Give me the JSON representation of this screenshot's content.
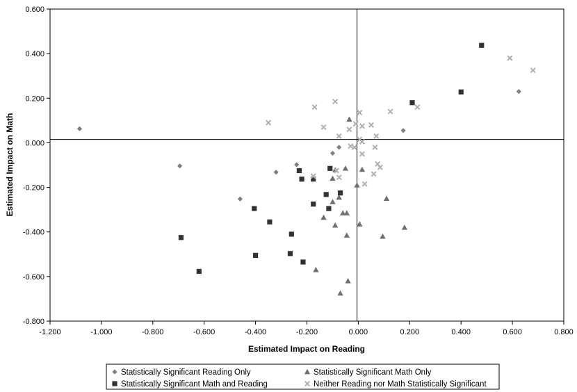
{
  "chart_data": {
    "type": "scatter",
    "title": "",
    "xlabel": "Estimated Impact on Reading",
    "ylabel": "Estimated Impact on Math",
    "xlim": [
      -1.2,
      0.8
    ],
    "ylim": [
      -0.8,
      0.6
    ],
    "x_ticks": [
      "-1.200",
      "-1.000",
      "-0.800",
      "-0.600",
      "-0.400",
      "-0.200",
      "0.000",
      "0.200",
      "0.400",
      "0.600",
      "0.800"
    ],
    "y_ticks": [
      "0.600",
      "0.400",
      "0.200",
      "0.000",
      "-0.200",
      "-0.400",
      "-0.600",
      "-0.800"
    ],
    "grid": false,
    "legend_position": "bottom",
    "reference_lines": {
      "x": -0.005,
      "y": 0.015
    },
    "series": [
      {
        "name": "Statistically Significant Reading Only",
        "marker": "diamond",
        "color": "#808080",
        "points": [
          [
            -1.085,
            0.063
          ],
          [
            -0.695,
            -0.104
          ],
          [
            -0.46,
            -0.252
          ],
          [
            -0.32,
            -0.132
          ],
          [
            -0.24,
            -0.098
          ],
          [
            -0.1,
            -0.047
          ],
          [
            -0.075,
            -0.02
          ],
          [
            0.175,
            0.055
          ],
          [
            0.625,
            0.23
          ]
        ]
      },
      {
        "name": "Statistically Significant Math Only",
        "marker": "triangle",
        "color": "#707070",
        "points": [
          [
            -0.035,
            0.105
          ],
          [
            -0.09,
            -0.122
          ],
          [
            -0.05,
            -0.115
          ],
          [
            0.015,
            -0.12
          ],
          [
            -0.005,
            -0.19
          ],
          [
            -0.1,
            -0.16
          ],
          [
            -0.075,
            -0.245
          ],
          [
            -0.1,
            -0.265
          ],
          [
            0.11,
            -0.25
          ],
          [
            -0.135,
            -0.335
          ],
          [
            -0.06,
            -0.315
          ],
          [
            -0.045,
            -0.315
          ],
          [
            -0.09,
            -0.37
          ],
          [
            0.005,
            -0.365
          ],
          [
            0.18,
            -0.38
          ],
          [
            -0.045,
            -0.415
          ],
          [
            0.095,
            -0.42
          ],
          [
            -0.165,
            -0.57
          ],
          [
            -0.04,
            -0.62
          ],
          [
            -0.07,
            -0.675
          ]
        ]
      },
      {
        "name": "Statistically Significant Math and Reading",
        "marker": "square",
        "color": "#333333",
        "points": [
          [
            0.48,
            0.437
          ],
          [
            0.21,
            0.18
          ],
          [
            0.4,
            0.228
          ],
          [
            -0.23,
            -0.125
          ],
          [
            -0.22,
            -0.163
          ],
          [
            -0.175,
            -0.163
          ],
          [
            -0.11,
            -0.115
          ],
          [
            -0.07,
            -0.225
          ],
          [
            -0.125,
            -0.232
          ],
          [
            -0.175,
            -0.275
          ],
          [
            -0.115,
            -0.295
          ],
          [
            -0.405,
            -0.295
          ],
          [
            -0.345,
            -0.355
          ],
          [
            -0.26,
            -0.41
          ],
          [
            -0.69,
            -0.425
          ],
          [
            -0.265,
            -0.497
          ],
          [
            -0.4,
            -0.505
          ],
          [
            -0.215,
            -0.535
          ],
          [
            -0.62,
            -0.577
          ]
        ]
      },
      {
        "name": "Neither Reading nor Math Statistically Significant",
        "marker": "x",
        "color": "#b0b0b0",
        "points": [
          [
            0.59,
            0.38
          ],
          [
            0.68,
            0.325
          ],
          [
            0.23,
            0.16
          ],
          [
            0.125,
            0.14
          ],
          [
            -0.35,
            0.09
          ],
          [
            -0.17,
            0.16
          ],
          [
            -0.09,
            0.185
          ],
          [
            -0.135,
            0.07
          ],
          [
            0.005,
            0.135
          ],
          [
            0.015,
            0.075
          ],
          [
            0.05,
            0.08
          ],
          [
            -0.035,
            0.06
          ],
          [
            -0.01,
            0.085
          ],
          [
            -0.075,
            0.03
          ],
          [
            0.07,
            0.03
          ],
          [
            0.005,
            0.015
          ],
          [
            0.015,
            0.005
          ],
          [
            -0.03,
            -0.015
          ],
          [
            -0.015,
            -0.02
          ],
          [
            0.065,
            -0.02
          ],
          [
            0.015,
            -0.05
          ],
          [
            -0.085,
            -0.125
          ],
          [
            -0.075,
            -0.155
          ],
          [
            0.075,
            -0.095
          ],
          [
            0.085,
            -0.11
          ],
          [
            0.06,
            -0.14
          ],
          [
            -0.175,
            -0.15
          ],
          [
            0.025,
            -0.185
          ]
        ]
      }
    ]
  }
}
